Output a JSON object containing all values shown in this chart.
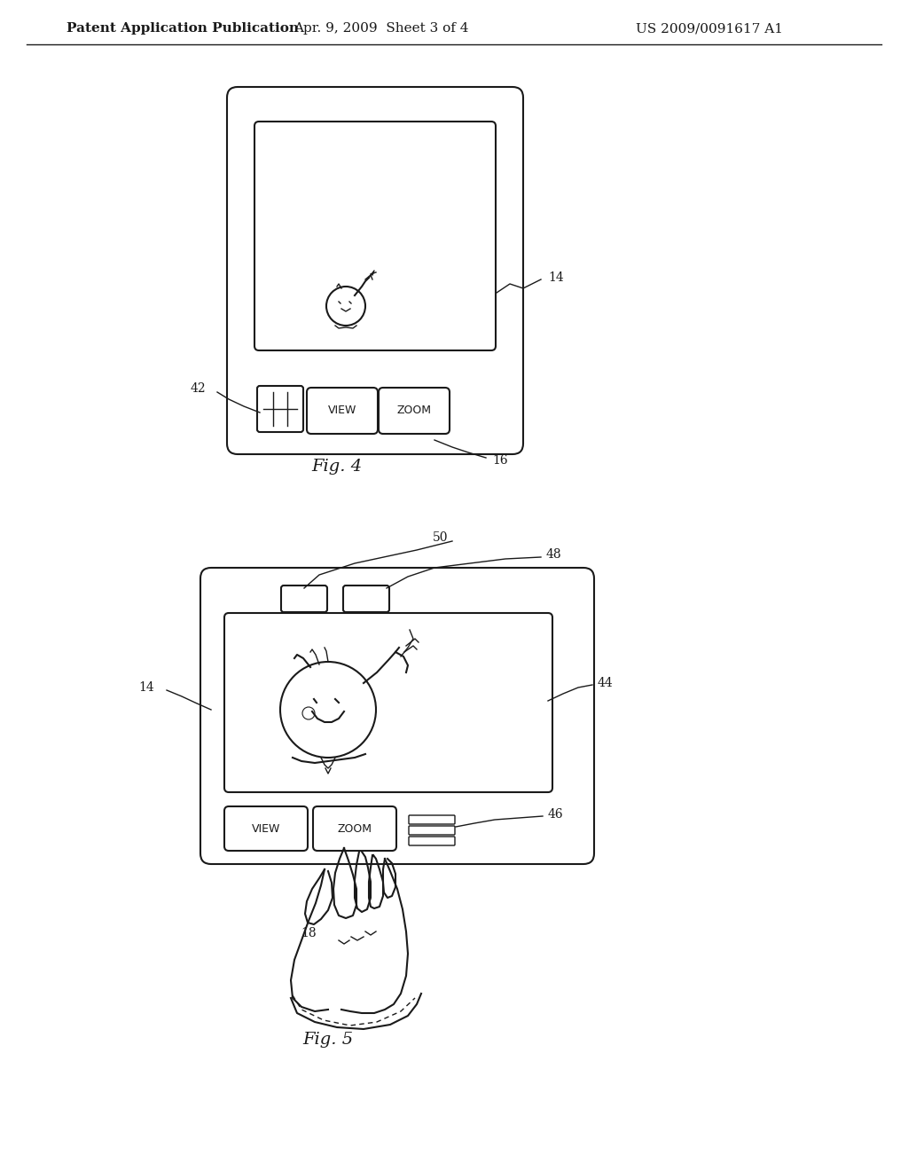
{
  "background_color": "#ffffff",
  "header_left": "Patent Application Publication",
  "header_mid": "Apr. 9, 2009  Sheet 3 of 4",
  "header_right": "US 2009/0091617 A1",
  "header_fontsize": 11,
  "fig4_label": "Fig. 4",
  "fig5_label": "Fig. 5",
  "line_color": "#1a1a1a",
  "line_width": 1.5,
  "thin_line": 1.0
}
